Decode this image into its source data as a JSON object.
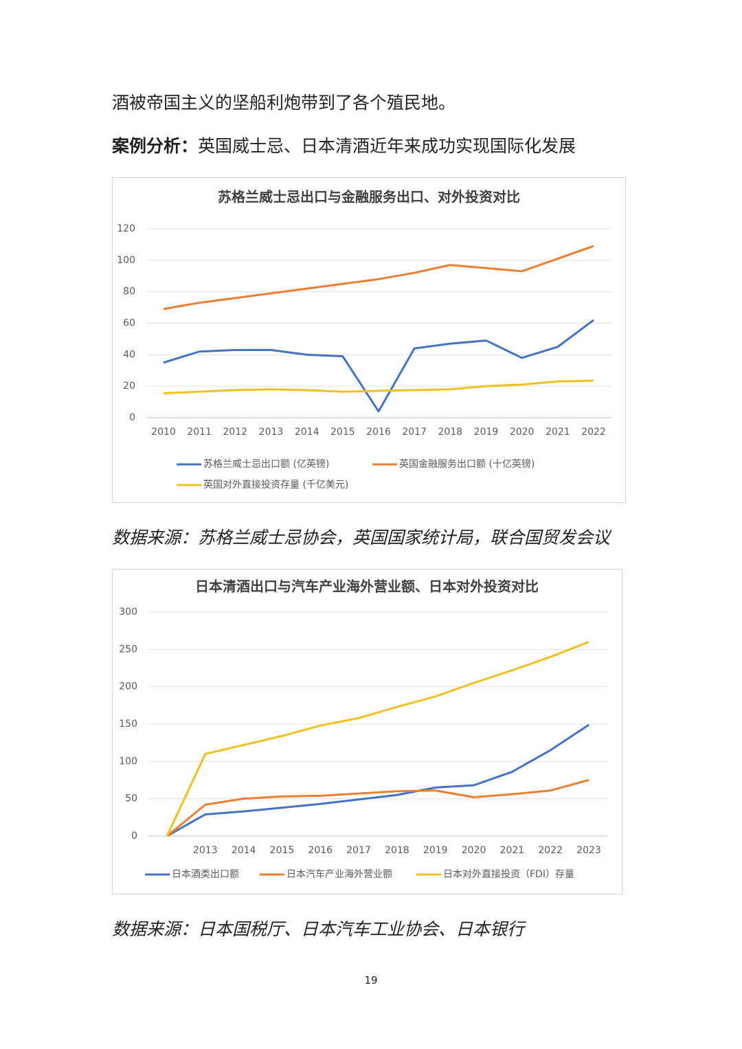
{
  "paragraph": "酒被帝国主义的坚船利炮带到了各个殖民地。",
  "heading": {
    "label": "案例分析：",
    "text": "英国威士忌、日本清酒近年来成功实现国际化发展"
  },
  "captions": [
    "数据来源：苏格兰威士忌协会，英国国家统计局，联合国贸发会议",
    "数据来源：日本国税厅、日本汽车工业协会、日本银行"
  ],
  "page_number": "19",
  "chart_data": [
    {
      "type": "line",
      "title": "苏格兰威士忌出口与金融服务出口、对外投资对比",
      "categories": [
        "2010",
        "2011",
        "2012",
        "2013",
        "2014",
        "2015",
        "2016",
        "2017",
        "2018",
        "2019",
        "2020",
        "2021",
        "2022"
      ],
      "series": [
        {
          "name": "苏格兰威士忌出口额 (亿英镑)",
          "color": "#4472c4",
          "values": [
            35,
            42,
            43,
            43,
            40,
            39,
            4,
            44,
            47,
            49,
            38,
            45,
            62
          ]
        },
        {
          "name": "英国金融服务出口额 (十亿英镑)",
          "color": "#ed7d31",
          "values": [
            69,
            73,
            76,
            79,
            82,
            85,
            88,
            92,
            97,
            95,
            93,
            101,
            109
          ]
        },
        {
          "name": "英国对外直接投资存量 (千亿美元)",
          "color": "#f2c01e",
          "values": [
            15.5,
            16.5,
            17.5,
            18,
            17.5,
            16.5,
            17,
            17.5,
            18,
            20,
            21,
            23,
            23.5
          ]
        }
      ],
      "ylim": [
        0,
        120
      ],
      "yticks": [
        0,
        20,
        40,
        60,
        80,
        100,
        120
      ],
      "grid": true
    },
    {
      "type": "line",
      "title": "日本清酒出口与汽车产业海外营业额、日本对外投资对比",
      "categories": [
        null,
        "2013",
        "2014",
        "2015",
        "2016",
        "2017",
        "2018",
        "2019",
        "2020",
        "2021",
        "2022",
        "2023"
      ],
      "series": [
        {
          "name": "日本酒类出口额",
          "color": "#4472c4",
          "values": [
            0,
            29,
            33,
            38,
            43,
            49,
            55,
            65,
            68,
            86,
            115,
            149
          ]
        },
        {
          "name": "日本汽车产业海外营业额",
          "color": "#ed7d31",
          "values": [
            0,
            42,
            50,
            53,
            54,
            57,
            60,
            61,
            52,
            56,
            61,
            75
          ]
        },
        {
          "name": "日本对外直接投资（FDI）存量",
          "color": "#f2c01e",
          "values": [
            0,
            110,
            122,
            134,
            148,
            158,
            173,
            187,
            205,
            222,
            240,
            260
          ]
        }
      ],
      "ylim": [
        0,
        300
      ],
      "yticks": [
        0,
        50,
        100,
        150,
        200,
        250,
        300
      ],
      "grid": true
    }
  ]
}
